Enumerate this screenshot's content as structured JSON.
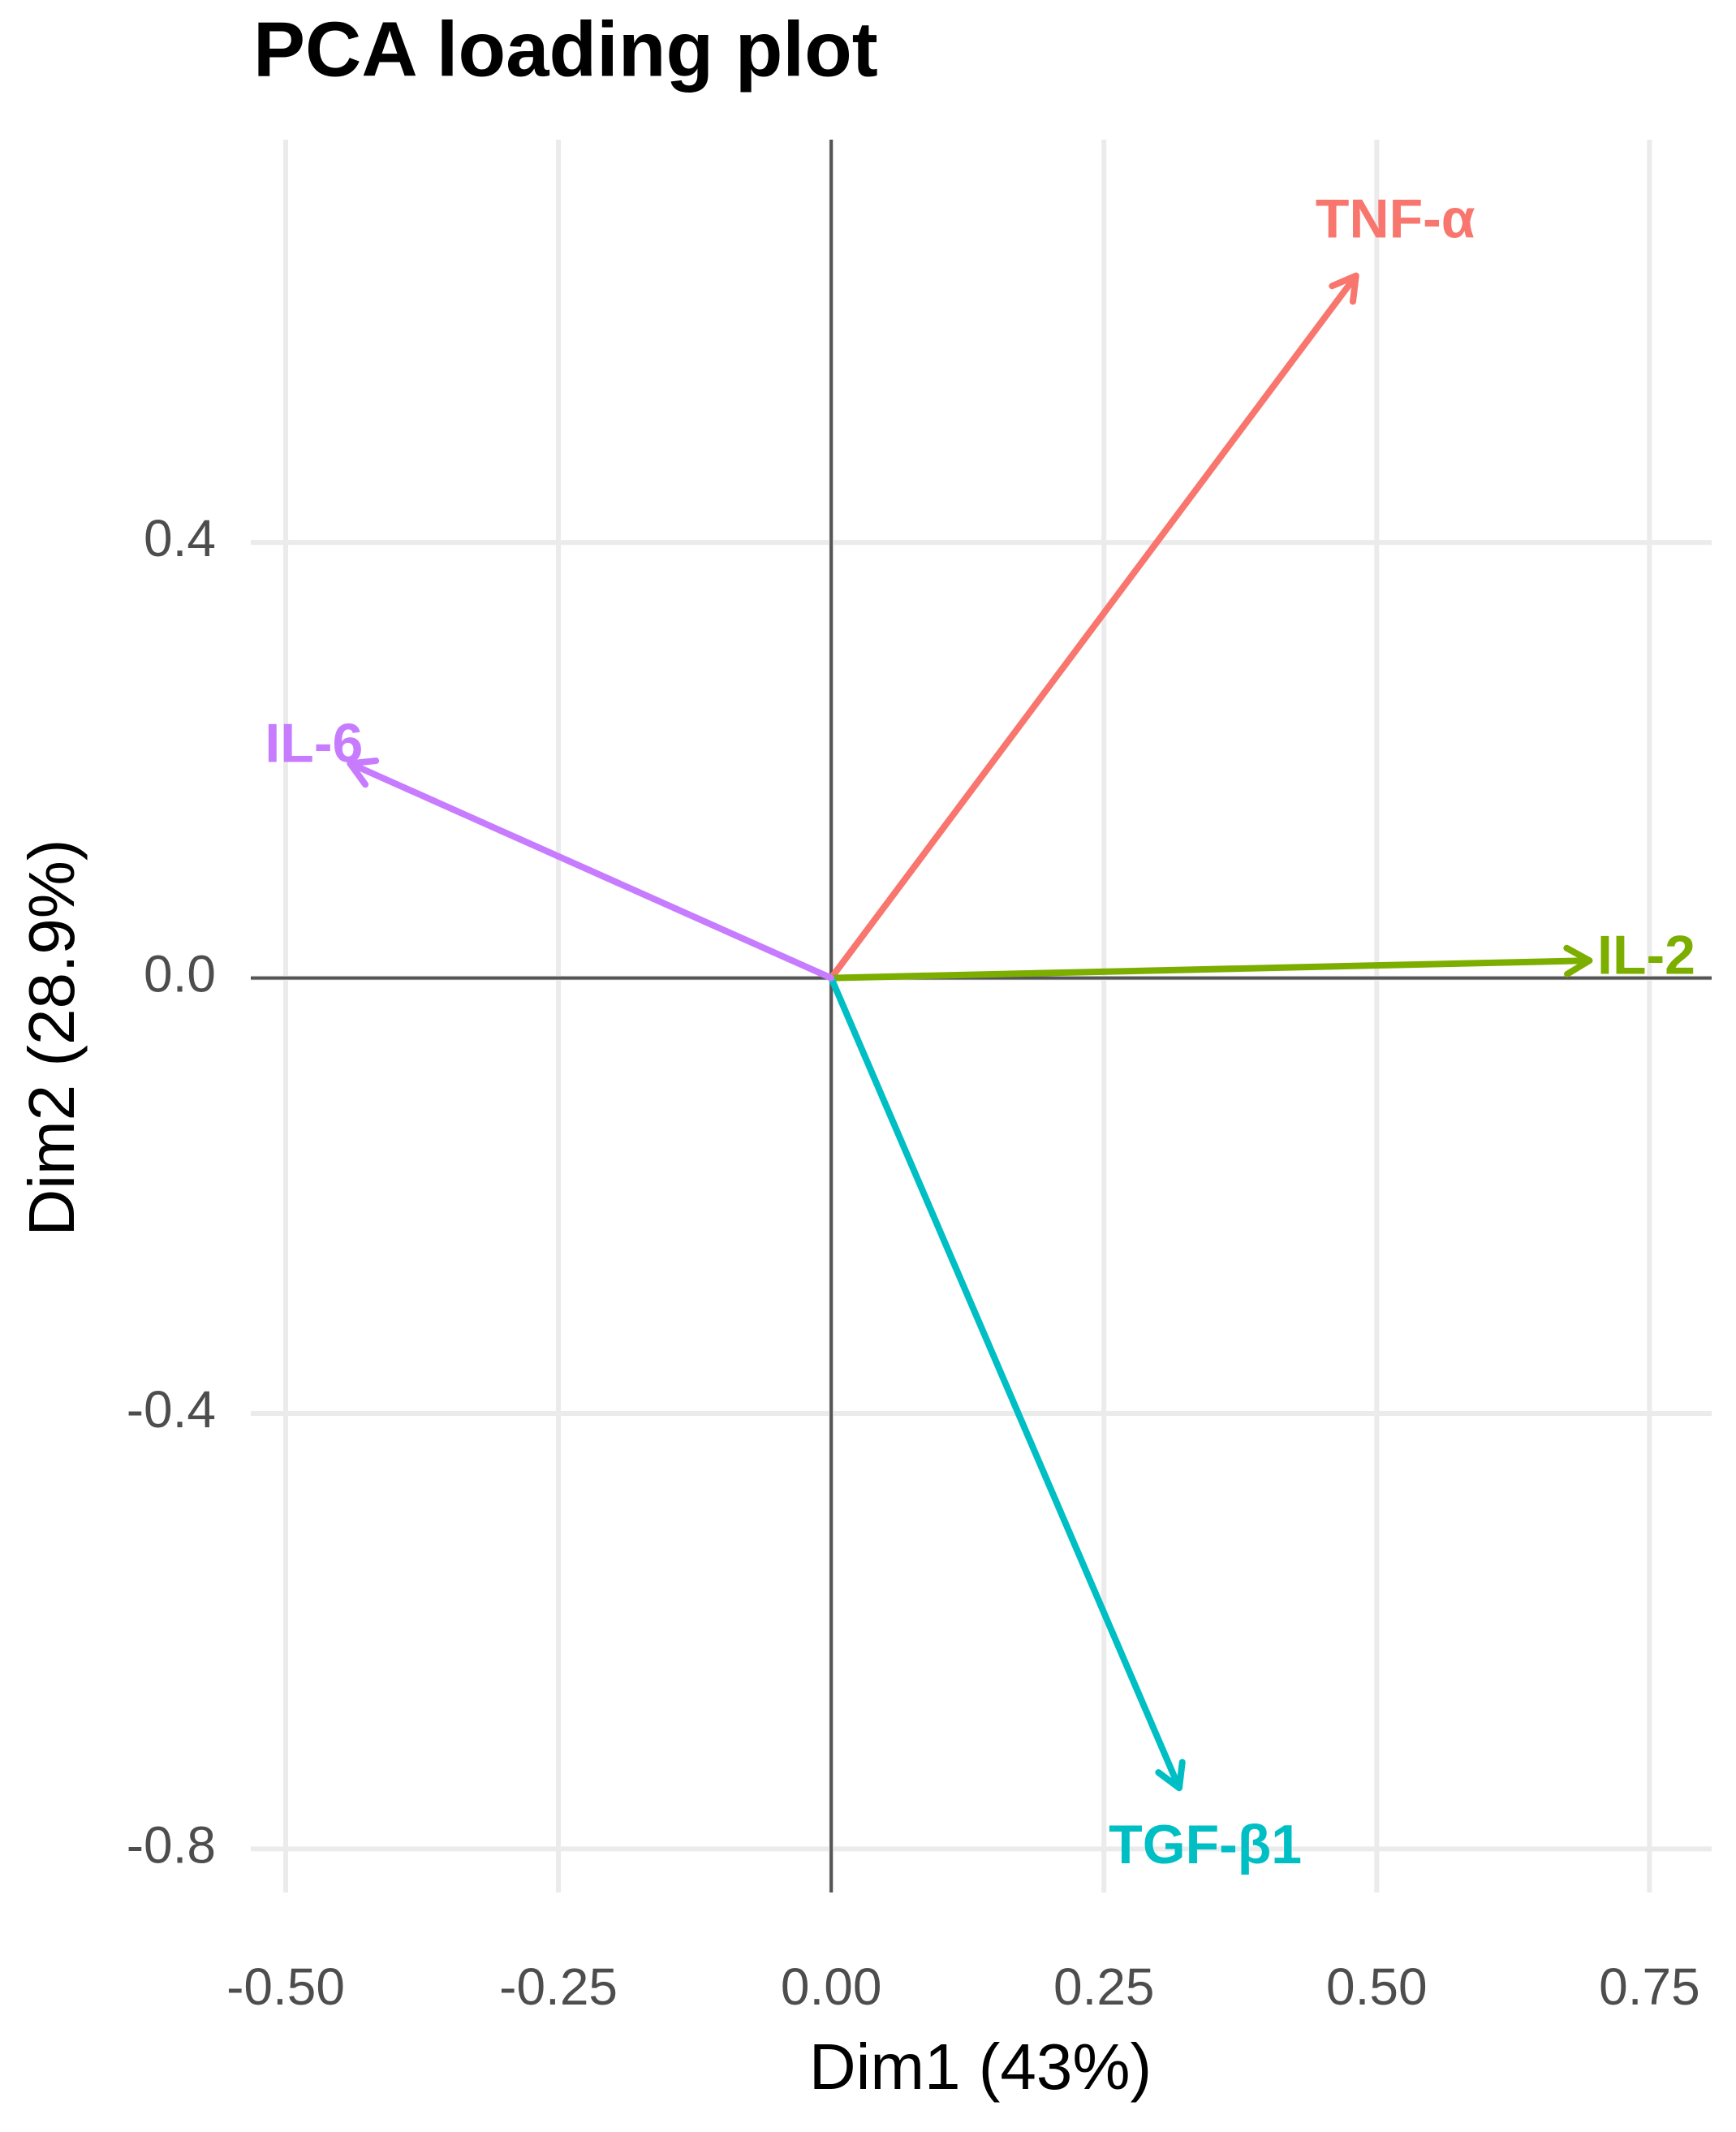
{
  "chart_data": {
    "type": "loading",
    "title": "PCA loading plot",
    "x_label": "Dim1 (43%)",
    "y_label": "Dim2 (28.9%)",
    "series": [
      {
        "name": "TNF-α",
        "color": "#F8766D",
        "x": 0.481,
        "y": 0.645
      },
      {
        "name": "IL-2",
        "color": "#7CAE00",
        "x": 0.695,
        "y": 0.016
      },
      {
        "name": "TGF-β1",
        "color": "#00BFC4",
        "x": 0.319,
        "y": -0.744
      },
      {
        "name": "IL-6",
        "color": "#C77CFF",
        "x": -0.441,
        "y": 0.197
      }
    ],
    "xlim": [
      -0.532,
      0.807
    ],
    "ylim": [
      -0.84,
      0.77
    ],
    "xticks": [
      {
        "value": -0.5,
        "label": "-0.50"
      },
      -0.25,
      {
        "value": 0,
        "label": "0.00"
      },
      0.25,
      {
        "value": 0.5,
        "label": "0.50"
      },
      0.75
    ],
    "yticks": [
      -0.8,
      -0.4,
      {
        "value": 0,
        "label": "0.0"
      },
      0.4
    ],
    "grid": true
  }
}
